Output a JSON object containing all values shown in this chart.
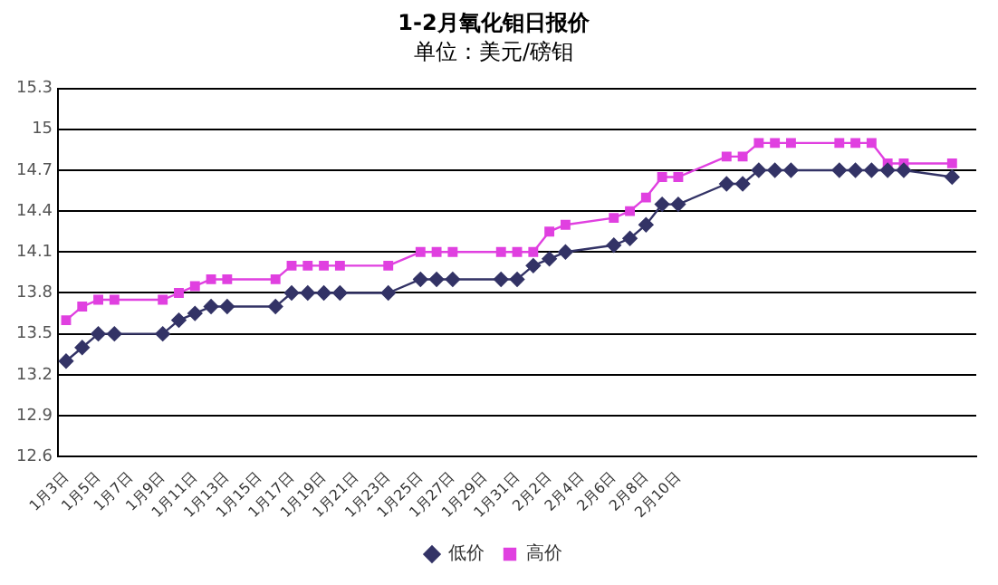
{
  "chart_data": {
    "type": "line",
    "title": "1-2月氧化钼日报价",
    "subtitle": "单位：美元/磅钼",
    "categories": [
      "1月3日",
      null,
      "1月5日",
      null,
      "1月7日",
      null,
      "1月9日",
      null,
      "1月11日",
      null,
      "1月13日",
      null,
      "1月15日",
      null,
      "1月17日",
      null,
      "1月19日",
      null,
      "1月21日",
      null,
      "1月23日",
      null,
      "1月25日",
      null,
      "1月27日",
      null,
      "1月29日",
      null,
      "1月31日",
      null,
      "2月2日",
      null,
      "2月4日",
      null,
      "2月6日",
      null,
      "2月8日",
      null,
      "2月10日",
      null,
      null,
      null,
      null,
      null,
      null,
      null,
      null,
      null,
      null,
      null,
      null,
      null,
      null,
      null,
      null,
      null,
      null
    ],
    "series": [
      {
        "name": "低价",
        "color": "#333366",
        "marker": "diamond",
        "values": [
          13.3,
          13.4,
          13.5,
          13.5,
          null,
          null,
          13.5,
          13.6,
          13.65,
          13.7,
          13.7,
          null,
          null,
          13.7,
          13.8,
          13.8,
          13.8,
          13.8,
          null,
          null,
          13.8,
          null,
          13.9,
          13.9,
          13.9,
          null,
          null,
          13.9,
          13.9,
          14.0,
          14.05,
          14.1,
          null,
          null,
          14.15,
          14.2,
          14.3,
          14.45,
          14.45,
          null,
          null,
          14.6,
          14.6,
          14.7,
          14.7,
          14.7,
          null,
          null,
          14.7,
          14.7,
          14.7,
          14.7,
          14.7,
          null,
          null,
          14.65,
          null
        ]
      },
      {
        "name": "高价",
        "color": "#e040e0",
        "marker": "square",
        "values": [
          13.6,
          13.7,
          13.75,
          13.75,
          null,
          null,
          13.75,
          13.8,
          13.85,
          13.9,
          13.9,
          null,
          null,
          13.9,
          14.0,
          14.0,
          14.0,
          14.0,
          null,
          null,
          14.0,
          null,
          14.1,
          14.1,
          14.1,
          null,
          null,
          14.1,
          14.1,
          14.1,
          14.25,
          14.3,
          null,
          null,
          14.35,
          14.4,
          14.5,
          14.65,
          14.65,
          null,
          null,
          14.8,
          14.8,
          14.9,
          14.9,
          14.9,
          null,
          null,
          14.9,
          14.9,
          14.9,
          14.75,
          14.75,
          null,
          null,
          14.75,
          null
        ]
      }
    ],
    "ylim": [
      12.6,
      15.3
    ],
    "yticks": [
      12.6,
      12.9,
      13.2,
      13.5,
      13.8,
      14.1,
      14.4,
      14.7,
      15,
      15.3
    ],
    "grid": "y",
    "legend": "bottom",
    "line_style": "solid"
  }
}
